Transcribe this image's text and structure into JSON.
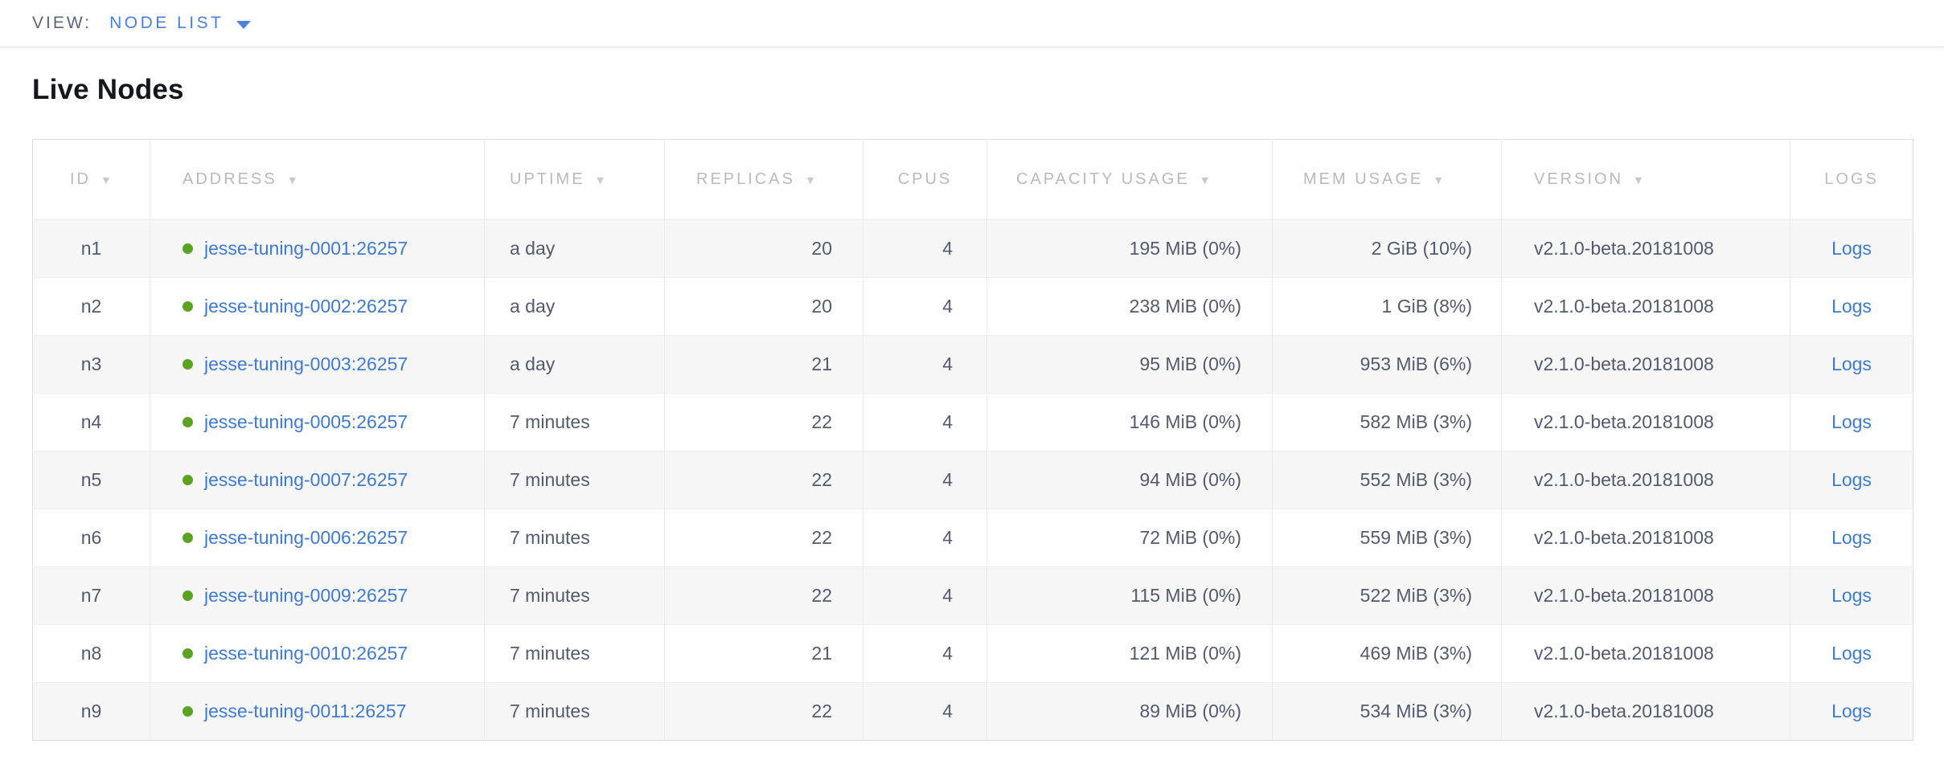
{
  "toolbar": {
    "view_label": "VIEW:",
    "view_value": "NODE LIST"
  },
  "page": {
    "title": "Live Nodes"
  },
  "icons": {
    "sort_arrow": "▼"
  },
  "colors": {
    "accent_blue": "#4a80e2",
    "link_blue": "#3e7ad2",
    "live_status_green": "#5ca223",
    "header_gray": "#b7bac1",
    "cell_text": "#525b6e",
    "row_stripe": "#f7f7f8"
  },
  "table": {
    "logs_label": "Logs",
    "columns": [
      {
        "key": "id",
        "label": "ID",
        "sortable": true
      },
      {
        "key": "address",
        "label": "ADDRESS",
        "sortable": true
      },
      {
        "key": "uptime",
        "label": "UPTIME",
        "sortable": true
      },
      {
        "key": "replicas",
        "label": "REPLICAS",
        "sortable": true
      },
      {
        "key": "cpus",
        "label": "CPUS",
        "sortable": false
      },
      {
        "key": "capacity",
        "label": "CAPACITY USAGE",
        "sortable": true
      },
      {
        "key": "mem",
        "label": "MEM USAGE",
        "sortable": true
      },
      {
        "key": "version",
        "label": "VERSION",
        "sortable": true
      },
      {
        "key": "logs",
        "label": "LOGS",
        "sortable": false
      }
    ],
    "rows": [
      {
        "id": "n1",
        "address": "jesse-tuning-0001:26257",
        "uptime": "a day",
        "replicas": "20",
        "cpus": "4",
        "capacity": "195 MiB (0%)",
        "mem": "2 GiB (10%)",
        "version": "v2.1.0-beta.20181008"
      },
      {
        "id": "n2",
        "address": "jesse-tuning-0002:26257",
        "uptime": "a day",
        "replicas": "20",
        "cpus": "4",
        "capacity": "238 MiB (0%)",
        "mem": "1 GiB (8%)",
        "version": "v2.1.0-beta.20181008"
      },
      {
        "id": "n3",
        "address": "jesse-tuning-0003:26257",
        "uptime": "a day",
        "replicas": "21",
        "cpus": "4",
        "capacity": "95 MiB (0%)",
        "mem": "953 MiB (6%)",
        "version": "v2.1.0-beta.20181008"
      },
      {
        "id": "n4",
        "address": "jesse-tuning-0005:26257",
        "uptime": "7 minutes",
        "replicas": "22",
        "cpus": "4",
        "capacity": "146 MiB (0%)",
        "mem": "582 MiB (3%)",
        "version": "v2.1.0-beta.20181008"
      },
      {
        "id": "n5",
        "address": "jesse-tuning-0007:26257",
        "uptime": "7 minutes",
        "replicas": "22",
        "cpus": "4",
        "capacity": "94 MiB (0%)",
        "mem": "552 MiB (3%)",
        "version": "v2.1.0-beta.20181008"
      },
      {
        "id": "n6",
        "address": "jesse-tuning-0006:26257",
        "uptime": "7 minutes",
        "replicas": "22",
        "cpus": "4",
        "capacity": "72 MiB (0%)",
        "mem": "559 MiB (3%)",
        "version": "v2.1.0-beta.20181008"
      },
      {
        "id": "n7",
        "address": "jesse-tuning-0009:26257",
        "uptime": "7 minutes",
        "replicas": "22",
        "cpus": "4",
        "capacity": "115 MiB (0%)",
        "mem": "522 MiB (3%)",
        "version": "v2.1.0-beta.20181008"
      },
      {
        "id": "n8",
        "address": "jesse-tuning-0010:26257",
        "uptime": "7 minutes",
        "replicas": "21",
        "cpus": "4",
        "capacity": "121 MiB (0%)",
        "mem": "469 MiB (3%)",
        "version": "v2.1.0-beta.20181008"
      },
      {
        "id": "n9",
        "address": "jesse-tuning-0011:26257",
        "uptime": "7 minutes",
        "replicas": "22",
        "cpus": "4",
        "capacity": "89 MiB (0%)",
        "mem": "534 MiB (3%)",
        "version": "v2.1.0-beta.20181008"
      }
    ]
  }
}
